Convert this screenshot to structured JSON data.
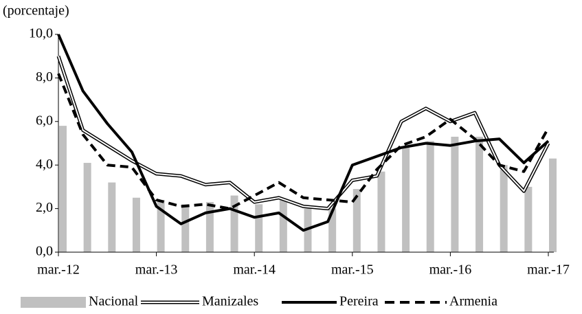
{
  "chart_data": {
    "type": "bar-line",
    "y_axis_label": "(porcentaje)",
    "categories": [
      "mar.-12",
      null,
      null,
      null,
      "mar.-13",
      null,
      null,
      null,
      "mar.-14",
      null,
      null,
      null,
      "mar.-15",
      null,
      null,
      null,
      "mar.-16",
      null,
      null,
      null,
      "mar.-17"
    ],
    "ylim": [
      0,
      10
    ],
    "yticks": [
      {
        "value": 0,
        "label": "0,0"
      },
      {
        "value": 2,
        "label": "2,0"
      },
      {
        "value": 4,
        "label": "4,0"
      },
      {
        "value": 6,
        "label": "6,0"
      },
      {
        "value": 8,
        "label": "8,0"
      },
      {
        "value": 10,
        "label": "10,0"
      }
    ],
    "grid": false,
    "legend": "bottom",
    "series": [
      {
        "name": "Nacional",
        "type": "bar",
        "color": "#c0c0c0",
        "values": [
          5.8,
          4.1,
          3.2,
          2.5,
          2.4,
          2.2,
          2.3,
          2.6,
          2.2,
          2.4,
          2.0,
          2.0,
          2.9,
          3.7,
          4.8,
          5.1,
          5.3,
          5.3,
          4.0,
          3.0,
          4.3
        ]
      },
      {
        "name": "Manizales",
        "type": "line",
        "style": "double",
        "color": "#000000",
        "values": [
          9.0,
          5.6,
          4.9,
          4.2,
          3.6,
          3.5,
          3.1,
          3.2,
          2.3,
          2.5,
          2.1,
          2.0,
          3.3,
          3.5,
          6.0,
          6.6,
          6.0,
          6.4,
          4.0,
          2.8,
          5.0
        ]
      },
      {
        "name": "Pereira",
        "type": "line",
        "style": "solid",
        "color": "#000000",
        "values": [
          10.0,
          7.4,
          5.9,
          4.6,
          2.1,
          1.3,
          1.8,
          2.0,
          1.6,
          1.8,
          1.0,
          1.4,
          4.0,
          4.4,
          4.8,
          5.0,
          4.9,
          5.1,
          5.2,
          4.1,
          5.1
        ]
      },
      {
        "name": "Armenia",
        "type": "line",
        "style": "dashed",
        "color": "#000000",
        "values": [
          8.2,
          5.4,
          4.0,
          3.9,
          2.4,
          2.1,
          2.2,
          2.0,
          2.6,
          3.2,
          2.5,
          2.4,
          2.3,
          3.8,
          4.9,
          5.3,
          6.1,
          5.2,
          4.0,
          3.7,
          5.7
        ]
      }
    ]
  }
}
